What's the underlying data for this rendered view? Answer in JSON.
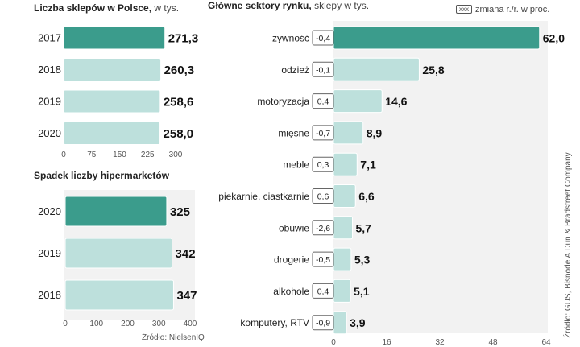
{
  "charts": {
    "stores": {
      "title_bold": "Liczba sklepów w Polsce,",
      "title_sub": "w tys."
    },
    "hyper": {
      "title_bold": "Spadek liczby hipermarketów",
      "source": "Źródło: NielsenIQ"
    },
    "sectors": {
      "title_bold": "Główne sektory rynku,",
      "title_sub": "sklepy w tys.",
      "legend_box": "xxx",
      "legend_text": "zmiana r./r. w proc.",
      "source": "Źródło: GUS, Bisnode A Dun & Bradstreet Company"
    }
  },
  "colors": {
    "highlight": "#3b9c8c",
    "normal": "#bde0dc",
    "axis": "#999999",
    "panel": "#f2f2f2"
  },
  "chart_data": [
    {
      "type": "bar",
      "orientation": "horizontal",
      "title": "Liczba sklepów w Polsce, w tys.",
      "categories": [
        "2017",
        "2018",
        "2019",
        "2020"
      ],
      "values": [
        271.3,
        260.3,
        258.6,
        258.0
      ],
      "labels": [
        "271,3",
        "260,3",
        "258,6",
        "258,0"
      ],
      "highlight": [
        true,
        false,
        false,
        false
      ],
      "xlim": [
        0,
        300
      ],
      "ticks": [
        "0",
        "75",
        "150",
        "225",
        "300"
      ]
    },
    {
      "type": "bar",
      "orientation": "horizontal",
      "title": "Spadek liczby hipermarketów",
      "categories": [
        "2020",
        "2019",
        "2018"
      ],
      "values": [
        325,
        342,
        347
      ],
      "labels": [
        "325",
        "342",
        "347"
      ],
      "highlight": [
        true,
        false,
        false
      ],
      "xlim": [
        0,
        400
      ],
      "ticks": [
        "0",
        "100",
        "200",
        "300",
        "400"
      ]
    },
    {
      "type": "bar",
      "orientation": "horizontal",
      "title": "Główne sektory rynku, sklepy w tys.",
      "categories": [
        "żywność",
        "odzież",
        "motoryzacja",
        "mięsne",
        "meble",
        "piekarnie, ciastkarnie",
        "obuwie",
        "drogerie",
        "alkohole",
        "komputery, RTV"
      ],
      "values": [
        62.0,
        25.8,
        14.6,
        8.9,
        7.1,
        6.6,
        5.7,
        5.3,
        5.1,
        3.9
      ],
      "labels": [
        "62,0",
        "25,8",
        "14,6",
        "8,9",
        "7,1",
        "6,6",
        "5,7",
        "5,3",
        "5,1",
        "3,9"
      ],
      "change": [
        "-0,4",
        "-0,1",
        "0,4",
        "-0,7",
        "0,3",
        "0,6",
        "-2,6",
        "-0,5",
        "0,4",
        "-0,9"
      ],
      "highlight": [
        true,
        false,
        false,
        false,
        false,
        false,
        false,
        false,
        false,
        false
      ],
      "xlim": [
        0,
        64
      ],
      "ticks": [
        "0",
        "16",
        "32",
        "48",
        "64"
      ]
    }
  ]
}
